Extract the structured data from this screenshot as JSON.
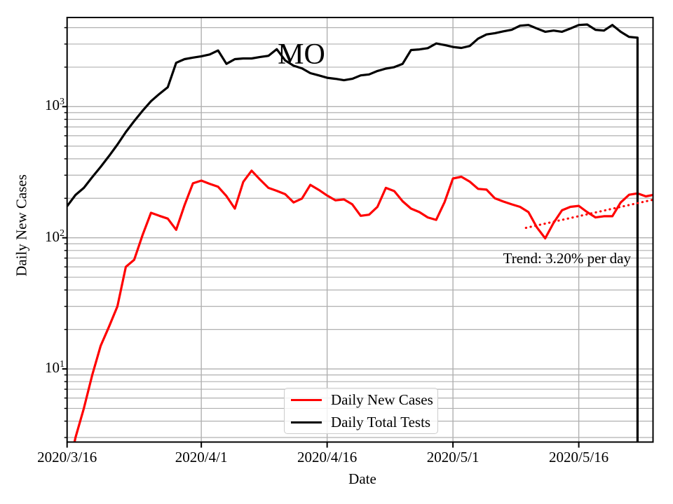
{
  "chart_data": {
    "type": "line",
    "title": "MO",
    "xlabel": "Date",
    "ylabel": "Daily New Cases",
    "y_scale": "log",
    "ylim": [
      2.77,
      4781
    ],
    "xlim_days": [
      0,
      69.85
    ],
    "start_date": "2020/3/16",
    "grid": "both major and minor, light gray, full box frame",
    "legend_position": "lower center",
    "x_ticks": [
      {
        "day": 0,
        "label": "2020/3/16"
      },
      {
        "day": 16,
        "label": "2020/4/1"
      },
      {
        "day": 31,
        "label": "2020/4/16"
      },
      {
        "day": 46,
        "label": "2020/5/1"
      },
      {
        "day": 61,
        "label": "2020/5/16"
      }
    ],
    "y_tick_exponents": [
      1,
      2,
      3
    ],
    "series": [
      {
        "name": "Daily New Cases",
        "color": "#ff0000",
        "final_drop": false,
        "values": [
          1.5,
          3,
          5,
          9,
          15,
          21,
          30,
          60,
          68,
          105,
          155,
          147,
          140,
          115,
          177,
          260,
          273,
          258,
          245,
          208,
          167,
          267,
          325,
          278,
          240,
          228,
          215,
          186,
          199,
          253,
          232,
          210,
          193,
          196,
          180,
          147,
          150,
          172,
          240,
          227,
          190,
          167,
          157,
          143,
          137,
          187,
          283,
          292,
          268,
          236,
          233,
          200,
          189,
          180,
          172,
          157,
          120,
          99,
          130,
          162,
          172,
          175,
          157,
          143,
          146,
          146,
          186,
          213,
          218,
          207,
          213
        ]
      },
      {
        "name": "Daily Total Tests",
        "color": "#000000",
        "final_drop": true,
        "values": [
          174,
          212,
          240,
          290,
          347,
          420,
          514,
          640,
          776,
          930,
          1100,
          1250,
          1406,
          2160,
          2300,
          2365,
          2420,
          2500,
          2680,
          2120,
          2300,
          2330,
          2330,
          2390,
          2440,
          2740,
          2250,
          2050,
          1960,
          1800,
          1730,
          1660,
          1630,
          1590,
          1630,
          1730,
          1760,
          1870,
          1950,
          2000,
          2120,
          2700,
          2730,
          2790,
          3030,
          2950,
          2850,
          2800,
          2900,
          3300,
          3550,
          3630,
          3750,
          3850,
          4140,
          4190,
          3940,
          3720,
          3800,
          3720,
          3940,
          4190,
          4230,
          3850,
          3800,
          4190,
          3720,
          3400,
          3350
        ]
      }
    ],
    "trendline": {
      "label": "Trend: 3.20% per day",
      "rate_percent_per_day": 3.2,
      "color": "#ff0000",
      "style": "dotted",
      "start_day": 54.7,
      "start_value": 119,
      "end_day": 69.85,
      "end_value": 195
    },
    "colors": {
      "grid": "#b0b0b0",
      "axes": "#000000",
      "background": "#ffffff"
    }
  },
  "legend": {
    "items": [
      {
        "label": "Daily New Cases",
        "color": "#ff0000"
      },
      {
        "label": "Daily Total Tests",
        "color": "#000000"
      }
    ]
  }
}
